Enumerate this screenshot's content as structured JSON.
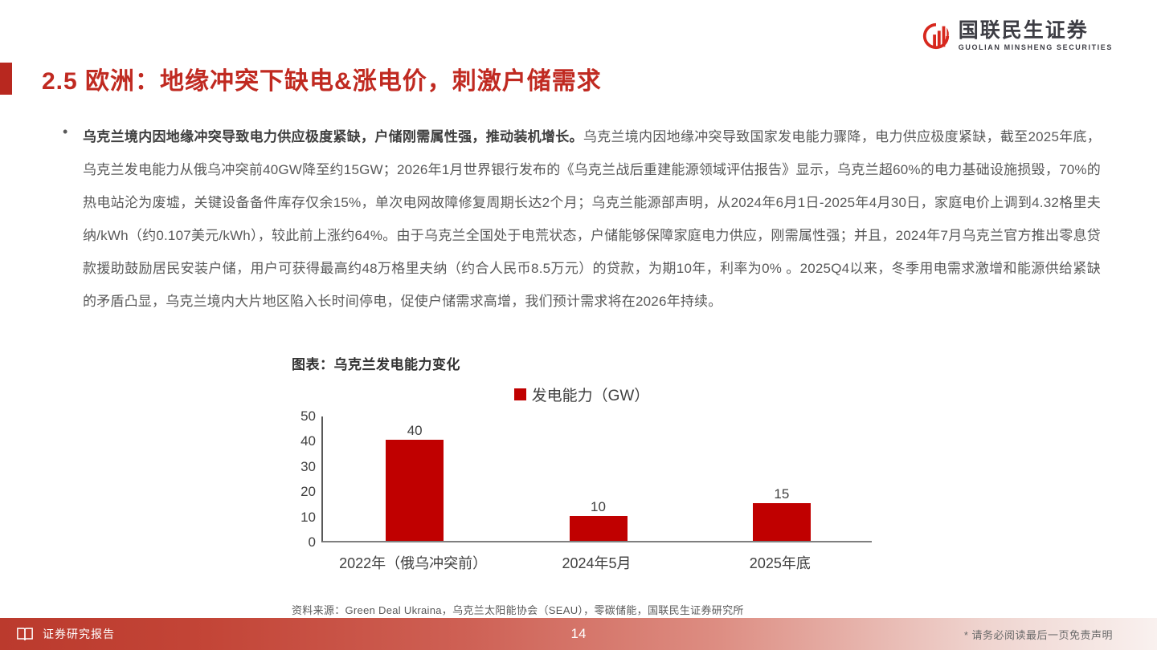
{
  "logo": {
    "name_cn": "国联民生证券",
    "name_en": "GUOLIAN MINSHENG SECURITIES"
  },
  "header": {
    "title": "2.5 欧洲：地缘冲突下缺电&涨电价，刺激户储需求"
  },
  "body": {
    "bullet": "•",
    "lead_bold": "乌克兰境内因地缘冲突导致电力供应极度紧缺，户储刚需属性强，推动装机增长。",
    "text": "乌克兰境内因地缘冲突导致国家发电能力骤降，电力供应极度紧缺，截至2025年底，乌克兰发电能力从俄乌冲突前40GW降至约15GW；2026年1月世界银行发布的《乌克兰战后重建能源领域评估报告》显示，乌克兰超60%的电力基础设施损毁，70%的热电站沦为废墟，关键设备备件库存仅余15%，单次电网故障修复周期长达2个月；乌克兰能源部声明，从2024年6月1日-2025年4月30日，家庭电价上调到4.32格里夫纳/kWh（约0.107美元/kWh），较此前上涨约64%。由于乌克兰全国处于电荒状态，户储能够保障家庭电力供应，刚需属性强；并且，2024年7月乌克兰官方推出零息贷款援助鼓励居民安装户储，用户可获得最高约48万格里夫纳（约合人民币8.5万元）的贷款，为期10年，利率为0% 。2025Q4以来，冬季用电需求激增和能源供给紧缺的矛盾凸显，乌克兰境内大片地区陷入长时间停电，促使户储需求高增，我们预计需求将在2026年持续。"
  },
  "chart": {
    "title": "图表：乌克兰发电能力变化",
    "source": "资料来源：Green Deal Ukraina，乌克兰太阳能协会（SEAU），零碳储能，国联民生证券研究所"
  },
  "chart_data": {
    "type": "bar",
    "title": "图表：乌克兰发电能力变化",
    "categories": [
      "2022年（俄乌冲突前）",
      "2024年5月",
      "2025年底"
    ],
    "values": [
      40,
      10,
      15
    ],
    "legend": [
      "发电能力（GW）"
    ],
    "legend_position": "top",
    "xlabel": "",
    "ylabel": "",
    "ylim": [
      0,
      50
    ],
    "yticks": [
      0,
      10,
      20,
      30,
      40,
      50
    ],
    "grid": false,
    "bar_color": "#C00000"
  },
  "footer": {
    "left_label": "证券研究报告",
    "page_number": "14",
    "right_label": "* 请务必阅读最后一页免责声明"
  },
  "colors": {
    "accent_red": "#C02A21",
    "bar_red": "#C00000",
    "body_text": "#595959",
    "footer_red": "#BB3A2D"
  }
}
